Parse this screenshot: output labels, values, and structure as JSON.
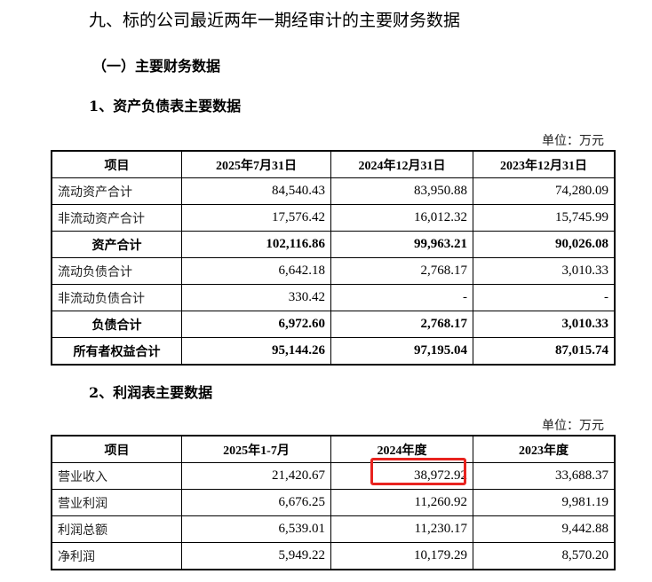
{
  "title": "九、标的公司最近两年一期经审计的主要财务数据",
  "section": "（一）主要财务数据",
  "balance_sheet": {
    "heading": "1、资产负债表主要数据",
    "unit": "单位：万元",
    "headers": [
      "项目",
      "2025年7月31日",
      "2024年12月31日",
      "2023年12月31日"
    ],
    "rows": [
      {
        "label": "流动资产合计",
        "values": [
          "84,540.43",
          "83,950.88",
          "74,280.09"
        ],
        "bold": false
      },
      {
        "label": "非流动资产合计",
        "values": [
          "17,576.42",
          "16,012.32",
          "15,745.99"
        ],
        "bold": false
      },
      {
        "label": "资产合计",
        "values": [
          "102,116.86",
          "99,963.21",
          "90,026.08"
        ],
        "bold": true
      },
      {
        "label": "流动负债合计",
        "values": [
          "6,642.18",
          "2,768.17",
          "3,010.33"
        ],
        "bold": false
      },
      {
        "label": "非流动负债合计",
        "values": [
          "330.42",
          "-",
          "-"
        ],
        "bold": false
      },
      {
        "label": "负债合计",
        "values": [
          "6,972.60",
          "2,768.17",
          "3,010.33"
        ],
        "bold": true
      },
      {
        "label": "所有者权益合计",
        "values": [
          "95,144.26",
          "97,195.04",
          "87,015.74"
        ],
        "bold": true
      }
    ]
  },
  "income_statement": {
    "heading": "2、利润表主要数据",
    "unit": "单位：万元",
    "headers": [
      "项目",
      "2025年1-7月",
      "2024年度",
      "2023年度"
    ],
    "rows": [
      {
        "label": "营业收入",
        "values": [
          "21,420.67",
          "38,972.92",
          "33,688.37"
        ]
      },
      {
        "label": "营业利润",
        "values": [
          "6,676.25",
          "11,260.92",
          "9,981.19"
        ]
      },
      {
        "label": "利润总额",
        "values": [
          "6,539.01",
          "11,230.17",
          "9,442.88"
        ]
      },
      {
        "label": "净利润",
        "values": [
          "5,949.22",
          "10,179.29",
          "8,570.20"
        ]
      }
    ],
    "highlight_color": "#e8231f"
  }
}
